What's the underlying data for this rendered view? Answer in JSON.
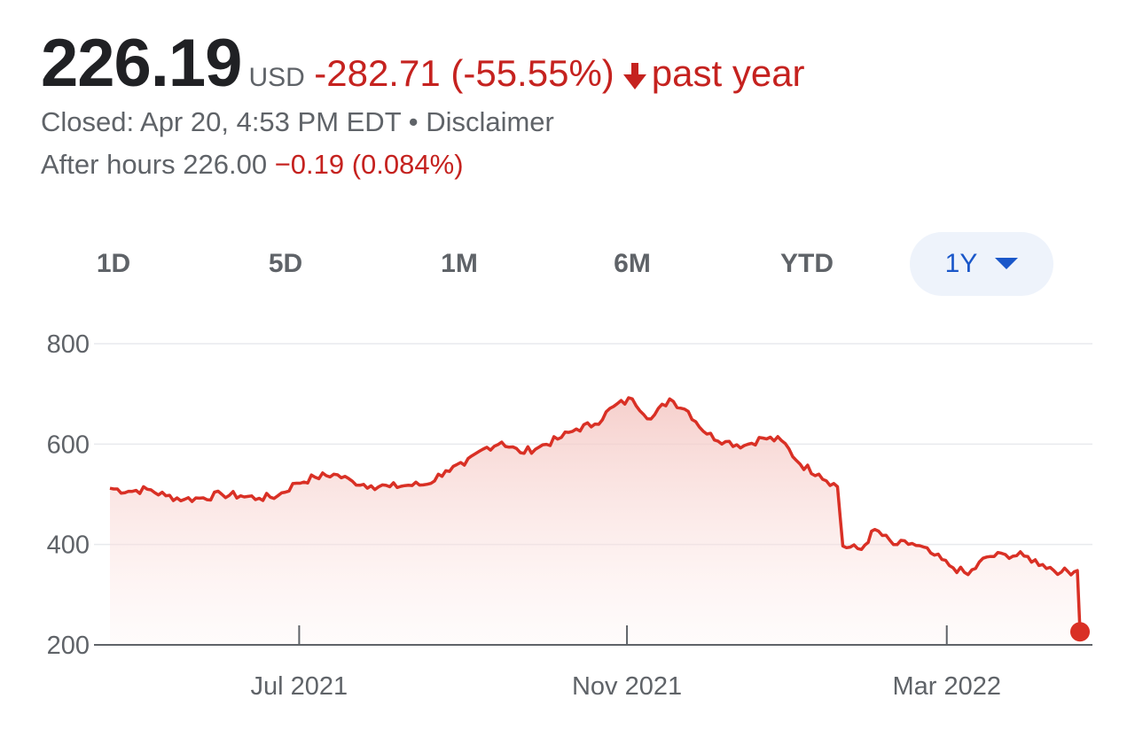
{
  "quote": {
    "price": "226.19",
    "currency": "USD",
    "change": "-282.71 (-55.55%)",
    "direction_icon": "arrow-down-icon",
    "period": "past year",
    "closed": "Closed: Apr 20, 4:53 PM EDT",
    "separator": "•",
    "disclaimer": "Disclaimer",
    "after_hours_label": "After hours 226.00",
    "after_hours_change": "−0.19 (0.084%)"
  },
  "range_tabs": [
    {
      "label": "1D",
      "active": false
    },
    {
      "label": "5D",
      "active": false
    },
    {
      "label": "1M",
      "active": false
    },
    {
      "label": "6M",
      "active": false
    },
    {
      "label": "YTD",
      "active": false
    },
    {
      "label": "1Y",
      "active": true
    }
  ],
  "colors": {
    "line": "#d93025",
    "fill_top": "#f4c7c3",
    "text_primary": "#202124",
    "text_secondary": "#5f6368",
    "negative": "#c5221f",
    "active_tab_text": "#1a57c9",
    "active_tab_bg": "#eef3fb",
    "grid": "#e8eaed"
  },
  "chart_data": {
    "type": "area",
    "x_range": [
      "2021-04-21",
      "2022-04-20"
    ],
    "ylim": [
      200,
      800
    ],
    "yticks": [
      "800",
      "600",
      "400",
      "200"
    ],
    "xticks": [
      {
        "date": "2021-07-01",
        "label": "Jul 2021"
      },
      {
        "date": "2021-11-01",
        "label": "Nov 2021"
      },
      {
        "date": "2022-03-01",
        "label": "Mar 2022"
      }
    ],
    "grid": true,
    "last_point_marker": true,
    "series": [
      {
        "points": [
          [
            "2021-04-21",
            512
          ],
          [
            "2021-04-28",
            506
          ],
          [
            "2021-05-05",
            510
          ],
          [
            "2021-05-12",
            497
          ],
          [
            "2021-05-19",
            490
          ],
          [
            "2021-05-26",
            493
          ],
          [
            "2021-06-02",
            500
          ],
          [
            "2021-06-09",
            497
          ],
          [
            "2021-06-16",
            492
          ],
          [
            "2021-06-23",
            497
          ],
          [
            "2021-06-30",
            522
          ],
          [
            "2021-07-07",
            534
          ],
          [
            "2021-07-14",
            540
          ],
          [
            "2021-07-21",
            526
          ],
          [
            "2021-07-28",
            517
          ],
          [
            "2021-08-04",
            515
          ],
          [
            "2021-08-11",
            518
          ],
          [
            "2021-08-18",
            520
          ],
          [
            "2021-08-25",
            547
          ],
          [
            "2021-09-01",
            558
          ],
          [
            "2021-09-08",
            590
          ],
          [
            "2021-09-15",
            604
          ],
          [
            "2021-09-22",
            583
          ],
          [
            "2021-09-29",
            594
          ],
          [
            "2021-10-06",
            610
          ],
          [
            "2021-10-13",
            630
          ],
          [
            "2021-10-20",
            640
          ],
          [
            "2021-10-27",
            675
          ],
          [
            "2021-11-03",
            690
          ],
          [
            "2021-11-10",
            650
          ],
          [
            "2021-11-17",
            690
          ],
          [
            "2021-11-24",
            665
          ],
          [
            "2021-12-01",
            620
          ],
          [
            "2021-12-08",
            605
          ],
          [
            "2021-12-15",
            597
          ],
          [
            "2021-12-22",
            612
          ],
          [
            "2021-12-29",
            607
          ],
          [
            "2022-01-05",
            560
          ],
          [
            "2022-01-12",
            540
          ],
          [
            "2022-01-19",
            515
          ],
          [
            "2022-01-21",
            397
          ],
          [
            "2022-01-28",
            390
          ],
          [
            "2022-02-02",
            430
          ],
          [
            "2022-02-09",
            400
          ],
          [
            "2022-02-16",
            402
          ],
          [
            "2022-02-23",
            383
          ],
          [
            "2022-03-02",
            358
          ],
          [
            "2022-03-09",
            340
          ],
          [
            "2022-03-16",
            375
          ],
          [
            "2022-03-23",
            380
          ],
          [
            "2022-03-30",
            377
          ],
          [
            "2022-04-06",
            360
          ],
          [
            "2022-04-13",
            345
          ],
          [
            "2022-04-19",
            348
          ],
          [
            "2022-04-20",
            226
          ]
        ]
      }
    ]
  }
}
